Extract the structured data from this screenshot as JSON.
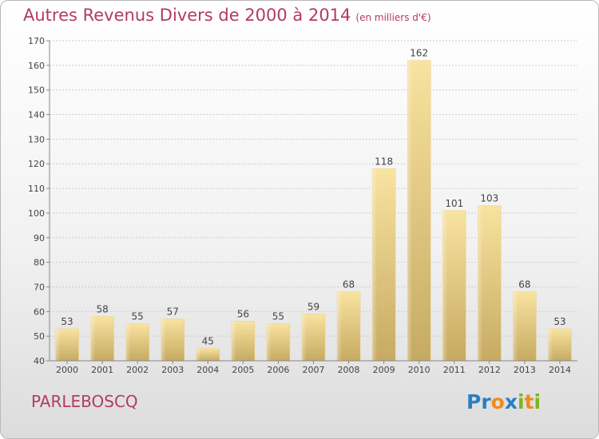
{
  "title": "Autres Revenus Divers de 2000 à 2014",
  "title_unit": "(en milliers d'€)",
  "commune": "PARLEBOSCQ",
  "logo": {
    "letters": [
      "P",
      "r",
      "o",
      "x",
      "i",
      "t",
      "i"
    ],
    "colors": [
      "#2a7fc1",
      "#2a7fc1",
      "#f08a1c",
      "#2a7fc1",
      "#7cb51f",
      "#f08a1c",
      "#7cb51f"
    ]
  },
  "colors": {
    "title": "#b23c5f",
    "bar_light": "#f9e3a0",
    "bar_dark": "#c6aa62",
    "grid": "#cccccc",
    "axis_text": "#444444"
  },
  "chart_data": {
    "type": "bar",
    "title": "Autres Revenus Divers de 2000 à 2014",
    "ylabel": "",
    "xlabel": "",
    "ylim": [
      40,
      170
    ],
    "yticks": [
      40,
      50,
      60,
      70,
      80,
      90,
      100,
      110,
      120,
      130,
      140,
      150,
      160,
      170
    ],
    "grid": true,
    "categories": [
      "2000",
      "2001",
      "2002",
      "2003",
      "2004",
      "2005",
      "2006",
      "2007",
      "2008",
      "2009",
      "2010",
      "2011",
      "2012",
      "2013",
      "2014"
    ],
    "values": [
      53,
      58,
      55,
      57,
      45,
      56,
      55,
      59,
      68,
      118,
      162,
      101,
      103,
      68,
      53
    ]
  }
}
